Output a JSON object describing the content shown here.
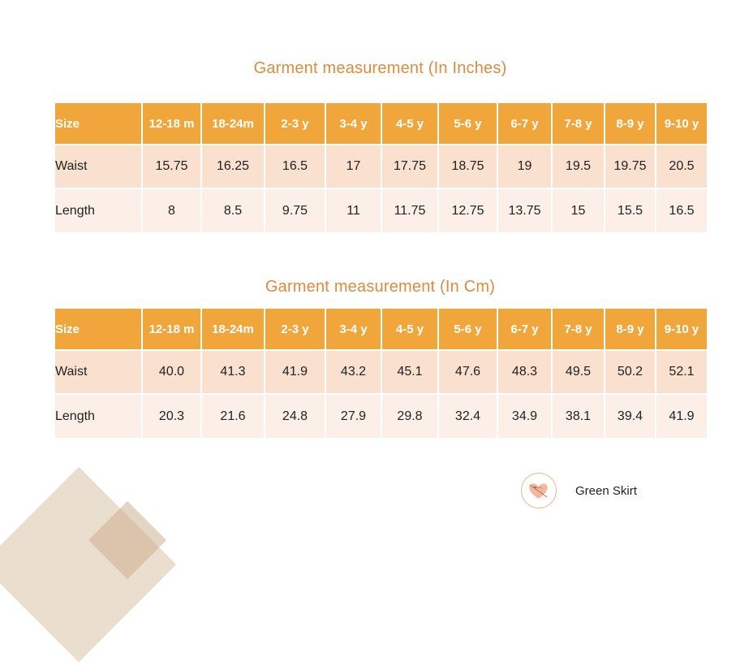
{
  "tables": [
    {
      "title": "Garment measurement (In Inches)",
      "header": [
        "Size",
        "12-18 m",
        "18-24m",
        "2-3 y",
        "3-4 y",
        "4-5 y",
        "5-6 y",
        "6-7 y",
        "7-8 y",
        "8-9 y",
        "9-10 y"
      ],
      "rows": [
        [
          "Waist",
          "15.75",
          "16.25",
          "16.5",
          "17",
          "17.75",
          "18.75",
          "19",
          "19.5",
          "19.75",
          "20.5"
        ],
        [
          "Length",
          "8",
          "8.5",
          "9.75",
          "11",
          "11.75",
          "12.75",
          "13.75",
          "15",
          "15.5",
          "16.5"
        ]
      ]
    },
    {
      "title": "Garment measurement (In Cm)",
      "header": [
        "Size",
        "12-18 m",
        "18-24m",
        "2-3 y",
        "3-4 y",
        "4-5 y",
        "5-6 y",
        "6-7 y",
        "7-8 y",
        "8-9 y",
        "9-10 y"
      ],
      "rows": [
        [
          "Waist",
          "40.0",
          "41.3",
          "41.9",
          "43.2",
          "45.1",
          "47.6",
          "48.3",
          "49.5",
          "50.2",
          "52.1"
        ],
        [
          "Length",
          "20.3",
          "21.6",
          "24.8",
          "27.9",
          "29.8",
          "32.4",
          "34.9",
          "38.1",
          "39.4",
          "41.9"
        ]
      ]
    }
  ],
  "brand": {
    "name": "Green Skirt",
    "logo_icon": "heart-bird-logo-icon"
  },
  "colors": {
    "title": "#e08a3c",
    "header_bg": "#f0a63b",
    "row1_bg": "#f9e0cf",
    "row2_bg": "#fcefe7",
    "decor": "#d9c2a7"
  }
}
